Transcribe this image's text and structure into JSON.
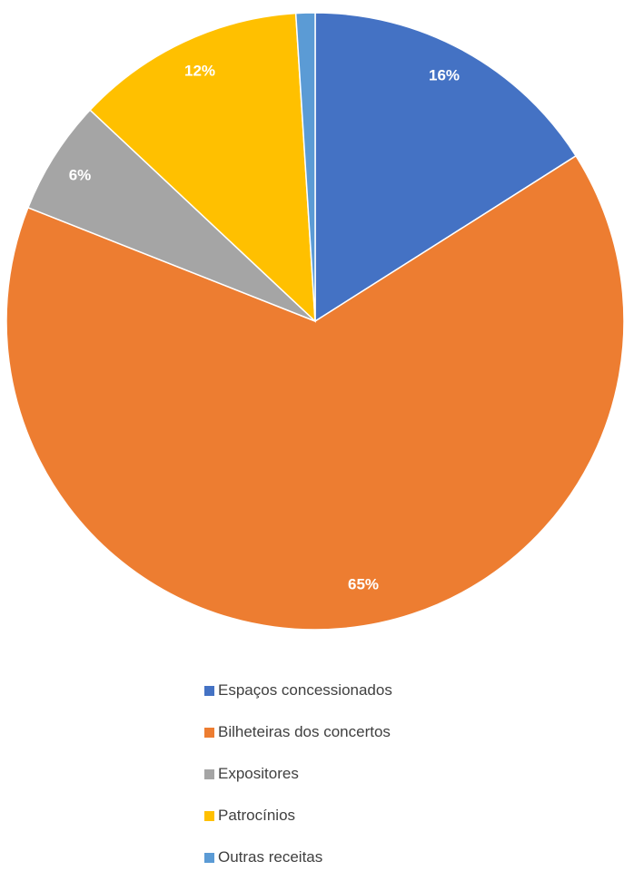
{
  "chart_data": {
    "type": "pie",
    "title": "",
    "categories": [
      "Espaços concessionados",
      "Bilheteiras dos concertos",
      "Expositores",
      "Patrocínios",
      "Outras receitas"
    ],
    "values": [
      16,
      65,
      6,
      12,
      1
    ],
    "data_labels": [
      "16%",
      "65%",
      "6%",
      "12%",
      ""
    ],
    "colors": [
      "#4472C4",
      "#ED7D31",
      "#A5A5A5",
      "#FFC000",
      "#5B9BD5"
    ],
    "legend_position": "bottom",
    "start_angle": "12 o'clock",
    "direction": "clockwise"
  }
}
